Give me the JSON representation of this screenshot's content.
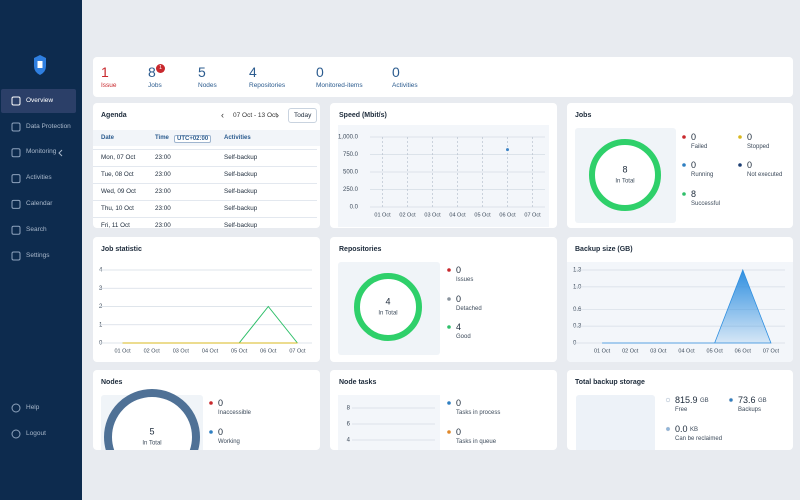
{
  "sidebar": {
    "menu": [
      "Overview",
      "Data Protection",
      "Monitoring",
      "Activities",
      "Calendar",
      "Search",
      "Settings"
    ],
    "bottom": [
      "Help",
      "Logout"
    ]
  },
  "summary": [
    {
      "value": 1,
      "label": "Issue"
    },
    {
      "value": 8,
      "label": "Jobs",
      "badge": 1
    },
    {
      "value": 5,
      "label": "Nodes"
    },
    {
      "value": 4,
      "label": "Repositories"
    },
    {
      "value": 0,
      "label": "Monitored-items"
    },
    {
      "value": 0,
      "label": "Activities"
    }
  ],
  "agenda": {
    "title": "Agenda",
    "range": "07 Oct - 13 Oct",
    "today": "Today",
    "columns": [
      "Date",
      "Time",
      "UTC+02:00",
      "Activities"
    ],
    "rows": [
      [
        "Mon, 07 Oct",
        "23:00",
        "Self-backup"
      ],
      [
        "Tue, 08 Oct",
        "23:00",
        "Self-backup"
      ],
      [
        "Wed, 09 Oct",
        "23:00",
        "Self-backup"
      ],
      [
        "Thu, 10 Oct",
        "23:00",
        "Self-backup"
      ],
      [
        "Fri, 11 Oct",
        "23:00",
        "Self-backup"
      ]
    ]
  },
  "speed": {
    "title": "Speed (Mbit/s)",
    "chart": {
      "type": "line",
      "categories": [
        "01 Oct",
        "02 Oct",
        "03 Oct",
        "04 Oct",
        "05 Oct",
        "06 Oct",
        "07 Oct"
      ],
      "series": [
        {
          "color": "#3b82c4",
          "values": [
            null,
            null,
            null,
            null,
            null,
            820,
            null
          ]
        }
      ],
      "ylim": [
        0,
        1000
      ],
      "yticks": [
        {
          "value": 0,
          "label": "0.0"
        },
        {
          "value": 250,
          "label": "250.0"
        },
        {
          "value": 500,
          "label": "500.0"
        },
        {
          "value": 750,
          "label": "750.0"
        },
        {
          "value": 1000,
          "label": "1,000.0"
        }
      ],
      "grid": true
    }
  },
  "jobs": {
    "title": "Jobs",
    "total": 8,
    "total_label": "In Total",
    "legend": [
      {
        "value": 0,
        "label": "Failed",
        "color": "#c8282d"
      },
      {
        "value": 0,
        "label": "Stopped",
        "color": "#d9b81f"
      },
      {
        "value": 0,
        "label": "Running",
        "color": "#2f7fc1"
      },
      {
        "value": 0,
        "label": "Not executed",
        "color": "#1e3f73"
      },
      {
        "value": 8,
        "label": "Successful",
        "color": "#2fbf6a"
      }
    ]
  },
  "job_statistic": {
    "title": "Job statistic",
    "chart": {
      "type": "line",
      "categories": [
        "01 Oct",
        "02 Oct",
        "03 Oct",
        "04 Oct",
        "05 Oct",
        "06 Oct",
        "07 Oct"
      ],
      "series": [
        {
          "color": "#2fbf6a",
          "values": [
            0,
            0,
            0,
            0,
            0,
            2,
            0
          ]
        },
        {
          "color": "#d9b81f",
          "values": [
            0,
            0,
            0,
            0,
            0,
            0,
            0
          ]
        }
      ],
      "ylim": [
        0,
        4
      ],
      "yticks": [
        0,
        1,
        2,
        3,
        4
      ],
      "grid": true
    }
  },
  "repositories": {
    "title": "Repositories",
    "total": 4,
    "total_label": "In Total",
    "legend": [
      {
        "value": 0,
        "label": "Issues",
        "color": "#c8282d"
      },
      {
        "value": 0,
        "label": "Detached",
        "color": "#8a949e"
      },
      {
        "value": 4,
        "label": "Good",
        "color": "#2fbf6a"
      }
    ]
  },
  "backup_size": {
    "title": "Backup size (GB)",
    "chart": {
      "type": "area",
      "categories": [
        "01 Oct",
        "02 Oct",
        "03 Oct",
        "04 Oct",
        "05 Oct",
        "06 Oct",
        "07 Oct"
      ],
      "series": [
        {
          "color": "#2f8fe0",
          "values": [
            0,
            0,
            0,
            0,
            0,
            1.3,
            0
          ]
        }
      ],
      "ylim": [
        0,
        1.3
      ],
      "yticks": [
        0,
        0.3,
        0.6,
        {
          "value": 1,
          "label": "1.0"
        },
        1.3
      ],
      "grid": true
    }
  },
  "nodes": {
    "title": "Nodes",
    "total": 5,
    "total_label": "In Total",
    "legend": [
      {
        "value": 0,
        "label": "Inaccessible",
        "color": "#c8282d"
      },
      {
        "value": 0,
        "label": "Working",
        "color": "#2f7fc1"
      }
    ]
  },
  "node_tasks": {
    "title": "Node tasks",
    "chart": {
      "type": "line",
      "series": [],
      "ylim": [
        0,
        8
      ],
      "yticks": [
        4,
        6,
        8
      ],
      "grid": true
    },
    "legend": [
      {
        "value": 0,
        "label": "Tasks in process",
        "color": "#2f7fc1"
      },
      {
        "value": 0,
        "label": "Tasks in queue",
        "color": "#e0882a"
      }
    ]
  },
  "storage": {
    "title": "Total backup storage",
    "items": [
      {
        "value": "815.9",
        "unit": "GB",
        "label": "Free",
        "color": "#ffffff"
      },
      {
        "value": "73.6",
        "unit": "GB",
        "label": "Backups",
        "color": "#2f7fc1"
      },
      {
        "value": "0.0",
        "unit": "KB",
        "label": "Can be reclaimed",
        "color": "#8fb6dc"
      }
    ]
  }
}
